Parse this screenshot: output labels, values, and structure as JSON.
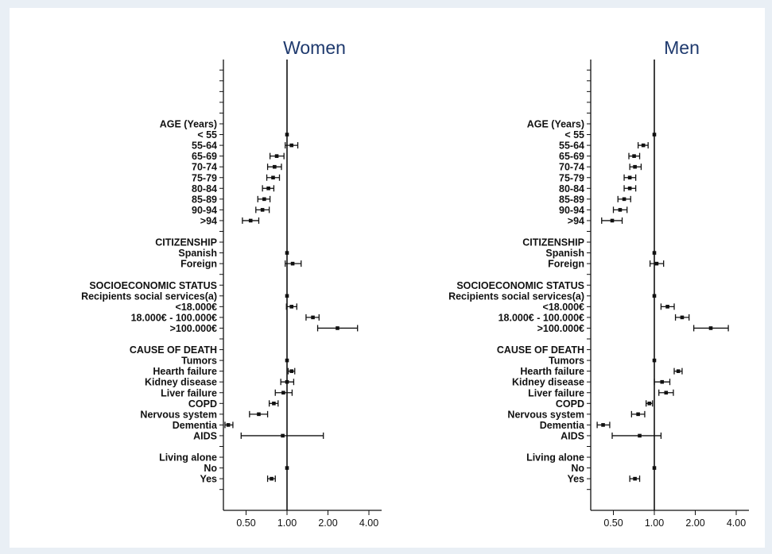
{
  "chart_data": [
    {
      "type": "forest",
      "title": "Women",
      "scale": "log",
      "xlim": [
        0.35,
        4.4
      ],
      "xticks": [
        "0.50",
        "1.00",
        "2.00",
        "4.00"
      ],
      "rows": [
        {
          "label": "AGE (Years)",
          "header": true
        },
        {
          "label": "< 55",
          "est": 1.0
        },
        {
          "label": "55-64",
          "est": 1.08,
          "lo": 0.97,
          "hi": 1.2
        },
        {
          "label": "65-69",
          "est": 0.84,
          "lo": 0.75,
          "hi": 0.95
        },
        {
          "label": "70-74",
          "est": 0.81,
          "lo": 0.72,
          "hi": 0.91
        },
        {
          "label": "75-79",
          "est": 0.79,
          "lo": 0.71,
          "hi": 0.88
        },
        {
          "label": "80-84",
          "est": 0.73,
          "lo": 0.66,
          "hi": 0.8
        },
        {
          "label": "85-89",
          "est": 0.68,
          "lo": 0.61,
          "hi": 0.75
        },
        {
          "label": "90-94",
          "est": 0.66,
          "lo": 0.59,
          "hi": 0.74
        },
        {
          "label": ">94",
          "est": 0.54,
          "lo": 0.47,
          "hi": 0.62
        },
        {
          "label": ""
        },
        {
          "label": "CITIZENSHIP",
          "header": true
        },
        {
          "label": "Spanish",
          "est": 1.0
        },
        {
          "label": "Foreign",
          "est": 1.1,
          "lo": 0.97,
          "hi": 1.27
        },
        {
          "label": ""
        },
        {
          "label": "SOCIOECONOMIC STATUS",
          "header": true
        },
        {
          "label": "Recipients social services(a)",
          "est": 1.0
        },
        {
          "label": "<18.000€",
          "est": 1.08,
          "lo": 0.99,
          "hi": 1.18
        },
        {
          "label": "18.000€ - 100.000€",
          "est": 1.55,
          "lo": 1.38,
          "hi": 1.72
        },
        {
          "label": ">100.000€",
          "est": 2.35,
          "lo": 1.68,
          "hi": 3.3
        },
        {
          "label": ""
        },
        {
          "label": "CAUSE OF DEATH",
          "header": true
        },
        {
          "label": "Tumors",
          "est": 1.0
        },
        {
          "label": "Hearth failure",
          "est": 1.08,
          "lo": 1.02,
          "hi": 1.14
        },
        {
          "label": "Kidney disease",
          "est": 1.0,
          "lo": 0.9,
          "hi": 1.12
        },
        {
          "label": "Liver failure",
          "est": 0.94,
          "lo": 0.82,
          "hi": 1.09
        },
        {
          "label": "COPD",
          "est": 0.8,
          "lo": 0.74,
          "hi": 0.86
        },
        {
          "label": "Nervous system",
          "est": 0.62,
          "lo": 0.53,
          "hi": 0.72
        },
        {
          "label": "Dementia",
          "est": 0.37,
          "lo": 0.35,
          "hi": 0.4
        },
        {
          "label": "AIDS",
          "est": 0.93,
          "lo": 0.46,
          "hi": 1.85
        },
        {
          "label": ""
        },
        {
          "label": "Living alone",
          "header": true
        },
        {
          "label": "No",
          "est": 1.0
        },
        {
          "label": "Yes",
          "est": 0.77,
          "lo": 0.72,
          "hi": 0.82
        },
        {
          "label": ""
        }
      ]
    },
    {
      "type": "forest",
      "title": "Men",
      "scale": "log",
      "xlim": [
        0.35,
        4.4
      ],
      "xticks": [
        "0.50",
        "1.00",
        "2.00",
        "4.00"
      ],
      "rows": [
        {
          "label": "AGE (Years)",
          "header": true
        },
        {
          "label": "< 55",
          "est": 1.0
        },
        {
          "label": "55-64",
          "est": 0.83,
          "lo": 0.76,
          "hi": 0.9
        },
        {
          "label": "65-69",
          "est": 0.71,
          "lo": 0.65,
          "hi": 0.78
        },
        {
          "label": "70-74",
          "est": 0.72,
          "lo": 0.66,
          "hi": 0.8
        },
        {
          "label": "75-79",
          "est": 0.66,
          "lo": 0.6,
          "hi": 0.73
        },
        {
          "label": "80-84",
          "est": 0.66,
          "lo": 0.6,
          "hi": 0.73
        },
        {
          "label": "85-89",
          "est": 0.6,
          "lo": 0.54,
          "hi": 0.67
        },
        {
          "label": "90-94",
          "est": 0.56,
          "lo": 0.5,
          "hi": 0.63
        },
        {
          "label": ">94",
          "est": 0.49,
          "lo": 0.41,
          "hi": 0.58
        },
        {
          "label": ""
        },
        {
          "label": "CITIZENSHIP",
          "header": true
        },
        {
          "label": "Spanish",
          "est": 1.0
        },
        {
          "label": "Foreign",
          "est": 1.04,
          "lo": 0.93,
          "hi": 1.17
        },
        {
          "label": ""
        },
        {
          "label": "SOCIOECONOMIC STATUS",
          "header": true
        },
        {
          "label": "Recipients social services(a)",
          "est": 1.0
        },
        {
          "label": "<18.000€",
          "est": 1.25,
          "lo": 1.12,
          "hi": 1.4
        },
        {
          "label": "18.000€ - 100.000€",
          "est": 1.6,
          "lo": 1.43,
          "hi": 1.8
        },
        {
          "label": ">100.000€",
          "est": 2.6,
          "lo": 1.95,
          "hi": 3.5
        },
        {
          "label": ""
        },
        {
          "label": "CAUSE OF DEATH",
          "header": true
        },
        {
          "label": "Tumors",
          "est": 1.0
        },
        {
          "label": "Hearth failure",
          "est": 1.5,
          "lo": 1.4,
          "hi": 1.6
        },
        {
          "label": "Kidney disease",
          "est": 1.14,
          "lo": 1.0,
          "hi": 1.3
        },
        {
          "label": "Liver failure",
          "est": 1.22,
          "lo": 1.08,
          "hi": 1.38
        },
        {
          "label": "COPD",
          "est": 0.92,
          "lo": 0.87,
          "hi": 0.97
        },
        {
          "label": "Nervous system",
          "est": 0.76,
          "lo": 0.68,
          "hi": 0.85
        },
        {
          "label": "Dementia",
          "est": 0.42,
          "lo": 0.38,
          "hi": 0.47
        },
        {
          "label": "AIDS",
          "est": 0.78,
          "lo": 0.49,
          "hi": 1.12
        },
        {
          "label": ""
        },
        {
          "label": "Living alone",
          "header": true
        },
        {
          "label": "No",
          "est": 1.0
        },
        {
          "label": "Yes",
          "est": 0.72,
          "lo": 0.66,
          "hi": 0.78
        },
        {
          "label": ""
        }
      ]
    }
  ],
  "colors": {
    "title": "#1f3a6e",
    "axis": "#111111",
    "background": "#e9eff5",
    "panel": "#ffffff"
  }
}
